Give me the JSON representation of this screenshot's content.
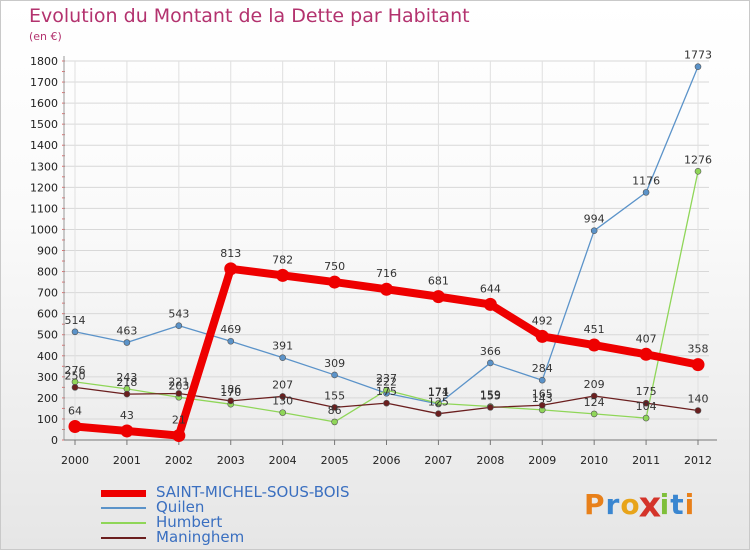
{
  "title": "Evolution du Montant de la Dette par Habitant",
  "unit": "(en €)",
  "logo": {
    "text": "Proxiti",
    "colors": [
      "#e8801a",
      "#3a86d0",
      "#e8a41a",
      "#d4342a",
      "#7fbf3a",
      "#3a86d0",
      "#e8801a"
    ]
  },
  "chart_data": {
    "type": "line",
    "title": "Evolution du Montant de la Dette par Habitant",
    "ylabel": "(en €)",
    "xlabel": "",
    "x": [
      "2000",
      "2001",
      "2002",
      "2003",
      "2004",
      "2005",
      "2006",
      "2007",
      "2008",
      "2009",
      "2010",
      "2011",
      "2012"
    ],
    "ylim": [
      0,
      1800
    ],
    "yticks": [
      0,
      100,
      200,
      300,
      400,
      500,
      600,
      700,
      800,
      900,
      1000,
      1100,
      1200,
      1300,
      1400,
      1500,
      1600,
      1700,
      1800
    ],
    "grid": true,
    "legend": "bottom-left",
    "series": [
      {
        "name": "SAINT-MICHEL-SOUS-BOIS",
        "color": "#ee0000",
        "width": 8,
        "values": [
          64,
          43,
          21,
          813,
          782,
          750,
          716,
          681,
          644,
          492,
          451,
          407,
          358
        ]
      },
      {
        "name": "Quilen",
        "color": "#5b93c9",
        "width": 1.3,
        "values": [
          514,
          463,
          543,
          469,
          391,
          309,
          222,
          171,
          366,
          284,
          994,
          1176,
          1773
        ]
      },
      {
        "name": "Humbert",
        "color": "#8fd658",
        "width": 1.3,
        "values": [
          276,
          243,
          203,
          170,
          130,
          86,
          237,
          174,
          159,
          143,
          124,
          104,
          1276
        ]
      },
      {
        "name": "Maninghem",
        "color": "#6b1f1f",
        "width": 1.3,
        "values": [
          250,
          218,
          221,
          186,
          207,
          155,
          175,
          125,
          155,
          165,
          209,
          175,
          140
        ]
      }
    ]
  }
}
